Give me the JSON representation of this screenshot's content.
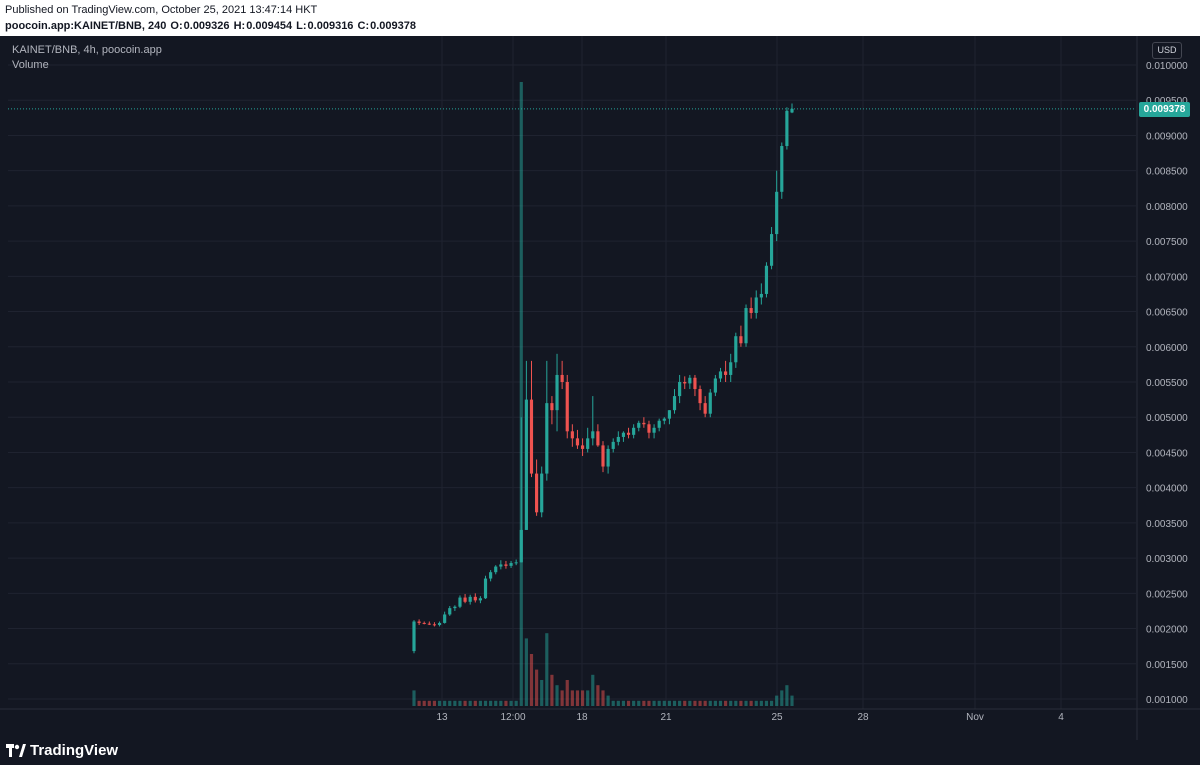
{
  "header": {
    "published": "Published on TradingView.com, October 25, 2021 13:47:14 HKT",
    "symbol": "poocoin.app:KAINET/BNB, 240",
    "o_label": "O:",
    "o_value": "0.009326",
    "h_label": "H:",
    "h_value": "0.009454",
    "l_label": "L:",
    "l_value": "0.009316",
    "c_label": "C:",
    "c_value": "0.009378"
  },
  "legend": {
    "series": "KAINET/BNB, 4h, poocoin.app",
    "volume": "Volume"
  },
  "scale": {
    "currency": "USD",
    "current_price": "0.009378"
  },
  "footer": {
    "brand": "TradingView"
  },
  "colors": {
    "background": "#131722",
    "up": "#26a69a",
    "down": "#ef5350",
    "grid": "#1f2330",
    "text": "#b2b5be"
  },
  "chart_data": {
    "type": "candlestick",
    "ylim": [
      0.00092,
      0.0102
    ],
    "yticks": [
      "0.010000",
      "0.009500",
      "0.009000",
      "0.008500",
      "0.008000",
      "0.007500",
      "0.007000",
      "0.006500",
      "0.006000",
      "0.005500",
      "0.005000",
      "0.004500",
      "0.004000",
      "0.003500",
      "0.003000",
      "0.002500",
      "0.002000",
      "0.001500",
      "0.001000"
    ],
    "xticks": [
      "13",
      "12:00",
      "18",
      "21",
      "25",
      "28",
      "Nov",
      "4"
    ],
    "current_price": 0.009378,
    "candles": [
      [
        0.00168,
        0.00212,
        0.00165,
        0.0021
      ],
      [
        0.0021,
        0.00213,
        0.00205,
        0.00208
      ],
      [
        0.00208,
        0.0021,
        0.00206,
        0.00207
      ],
      [
        0.00207,
        0.0021,
        0.00205,
        0.00206
      ],
      [
        0.00206,
        0.00209,
        0.00203,
        0.00205
      ],
      [
        0.00205,
        0.0021,
        0.00203,
        0.00208
      ],
      [
        0.00208,
        0.00224,
        0.00207,
        0.0022
      ],
      [
        0.0022,
        0.00232,
        0.00218,
        0.00229
      ],
      [
        0.00229,
        0.00233,
        0.00225,
        0.00231
      ],
      [
        0.00231,
        0.00247,
        0.00229,
        0.00244
      ],
      [
        0.00244,
        0.00249,
        0.00236,
        0.00238
      ],
      [
        0.00238,
        0.00248,
        0.00234,
        0.00245
      ],
      [
        0.00245,
        0.0025,
        0.00237,
        0.0024
      ],
      [
        0.0024,
        0.00246,
        0.00236,
        0.00243
      ],
      [
        0.00243,
        0.00275,
        0.00242,
        0.00271
      ],
      [
        0.00271,
        0.00283,
        0.00267,
        0.0028
      ],
      [
        0.0028,
        0.0029,
        0.00277,
        0.00288
      ],
      [
        0.00288,
        0.00297,
        0.00284,
        0.00291
      ],
      [
        0.00291,
        0.00296,
        0.00285,
        0.00289
      ],
      [
        0.00289,
        0.00296,
        0.00286,
        0.00293
      ],
      [
        0.00293,
        0.00298,
        0.0029,
        0.00294
      ],
      [
        0.00294,
        0.005,
        0.00294,
        0.0034
      ],
      [
        0.0034,
        0.0058,
        0.0034,
        0.00525
      ],
      [
        0.00525,
        0.0058,
        0.00415,
        0.0042
      ],
      [
        0.0042,
        0.0044,
        0.0036,
        0.00365
      ],
      [
        0.00365,
        0.0043,
        0.00358,
        0.0042
      ],
      [
        0.0042,
        0.0058,
        0.0041,
        0.0052
      ],
      [
        0.0052,
        0.0053,
        0.0049,
        0.0051
      ],
      [
        0.0051,
        0.0059,
        0.0048,
        0.0056
      ],
      [
        0.0056,
        0.0058,
        0.0054,
        0.0055
      ],
      [
        0.0055,
        0.0056,
        0.0047,
        0.0048
      ],
      [
        0.0048,
        0.0049,
        0.00458,
        0.0047
      ],
      [
        0.0047,
        0.00482,
        0.00455,
        0.0046
      ],
      [
        0.0046,
        0.0047,
        0.00445,
        0.00455
      ],
      [
        0.00455,
        0.00485,
        0.0045,
        0.0047
      ],
      [
        0.0047,
        0.0053,
        0.0046,
        0.0048
      ],
      [
        0.0048,
        0.0049,
        0.00458,
        0.0046
      ],
      [
        0.0046,
        0.00466,
        0.00422,
        0.0043
      ],
      [
        0.0043,
        0.0046,
        0.0042,
        0.00455
      ],
      [
        0.00455,
        0.0047,
        0.0045,
        0.00465
      ],
      [
        0.00465,
        0.0048,
        0.0046,
        0.00472
      ],
      [
        0.00472,
        0.0048,
        0.00465,
        0.00478
      ],
      [
        0.00478,
        0.00485,
        0.0047,
        0.00475
      ],
      [
        0.00475,
        0.0049,
        0.0047,
        0.00485
      ],
      [
        0.00485,
        0.00495,
        0.0048,
        0.00492
      ],
      [
        0.00492,
        0.005,
        0.00485,
        0.0049
      ],
      [
        0.0049,
        0.00495,
        0.0047,
        0.00478
      ],
      [
        0.00478,
        0.0049,
        0.0047,
        0.00485
      ],
      [
        0.00485,
        0.00498,
        0.0048,
        0.00495
      ],
      [
        0.00495,
        0.005,
        0.0049,
        0.00498
      ],
      [
        0.00498,
        0.0051,
        0.0049,
        0.0051
      ],
      [
        0.0051,
        0.0054,
        0.00505,
        0.0053
      ],
      [
        0.0053,
        0.0056,
        0.0052,
        0.0055
      ],
      [
        0.0055,
        0.00558,
        0.0054,
        0.00548
      ],
      [
        0.00548,
        0.0056,
        0.0054,
        0.00556
      ],
      [
        0.00556,
        0.0056,
        0.0053,
        0.0054
      ],
      [
        0.0054,
        0.00545,
        0.0051,
        0.0052
      ],
      [
        0.0052,
        0.0053,
        0.005,
        0.00505
      ],
      [
        0.00505,
        0.0054,
        0.005,
        0.00535
      ],
      [
        0.00535,
        0.0056,
        0.0053,
        0.00555
      ],
      [
        0.00555,
        0.0057,
        0.0055,
        0.00565
      ],
      [
        0.00565,
        0.0058,
        0.0055,
        0.0056
      ],
      [
        0.0056,
        0.0059,
        0.0055,
        0.00578
      ],
      [
        0.00578,
        0.0062,
        0.0057,
        0.00615
      ],
      [
        0.00615,
        0.0063,
        0.006,
        0.00605
      ],
      [
        0.00605,
        0.0066,
        0.006,
        0.00655
      ],
      [
        0.00655,
        0.0067,
        0.0064,
        0.00648
      ],
      [
        0.00648,
        0.0068,
        0.0064,
        0.0067
      ],
      [
        0.0067,
        0.0069,
        0.0066,
        0.00675
      ],
      [
        0.00675,
        0.0072,
        0.0067,
        0.00715
      ],
      [
        0.00715,
        0.0077,
        0.0071,
        0.0076
      ],
      [
        0.0076,
        0.0085,
        0.0075,
        0.0082
      ],
      [
        0.0082,
        0.0089,
        0.0081,
        0.00885
      ],
      [
        0.00885,
        0.0094,
        0.0088,
        0.00935
      ],
      [
        0.009326,
        0.009454,
        0.009316,
        0.009378
      ]
    ],
    "volume": [
      0.3,
      0.1,
      0.1,
      0.1,
      0.1,
      0.1,
      0.1,
      0.1,
      0.1,
      0.1,
      0.1,
      0.1,
      0.1,
      0.1,
      0.1,
      0.1,
      0.1,
      0.1,
      0.1,
      0.1,
      0.1,
      12,
      1.3,
      1,
      0.7,
      0.5,
      1.4,
      0.6,
      0.4,
      0.3,
      0.5,
      0.3,
      0.3,
      0.3,
      0.3,
      0.6,
      0.4,
      0.3,
      0.2,
      0.1,
      0.1,
      0.1,
      0.1,
      0.1,
      0.1,
      0.1,
      0.1,
      0.1,
      0.1,
      0.1,
      0.1,
      0.1,
      0.1,
      0.1,
      0.1,
      0.1,
      0.1,
      0.1,
      0.1,
      0.1,
      0.1,
      0.1,
      0.1,
      0.1,
      0.1,
      0.1,
      0.1,
      0.1,
      0.1,
      0.1,
      0.1,
      0.2,
      0.3,
      0.4,
      0.2
    ]
  }
}
